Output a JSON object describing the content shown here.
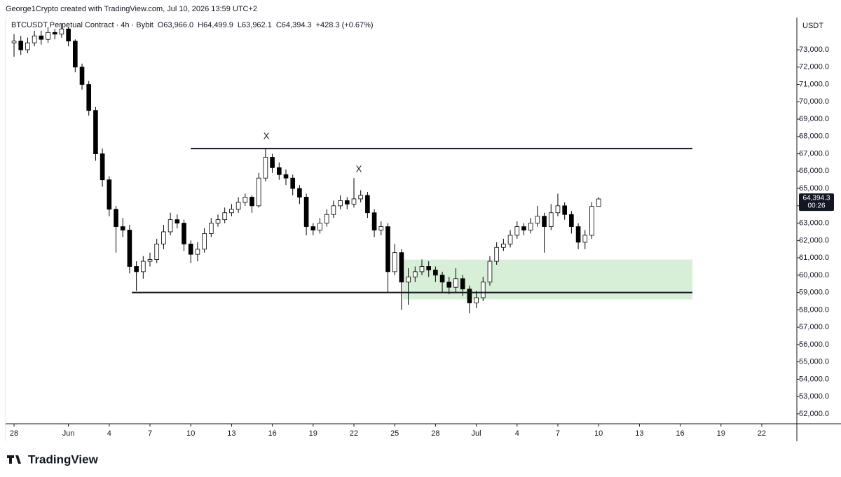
{
  "header": {
    "credit": "George1Crypto created with TradingView.com, Jul 10, 2026 13:59 UTC+2",
    "symbol": "BTCUSDT Perpetual Contract · 4h · Bybit",
    "open": "O63,966.0",
    "high": "H64,499.9",
    "low": "L63,962.1",
    "close": "C64,394.3",
    "change": "+428.3 (+0.67%)"
  },
  "footer": {
    "logo": "TradingView"
  },
  "chart_data": {
    "type": "candlestick",
    "currency": "USDT",
    "up_color": "#ffffff",
    "down_color": "#000000",
    "wick_color": "#000000",
    "x": [
      0,
      0.5,
      1,
      1.5,
      2,
      2.5,
      3,
      3.5,
      4,
      4.5,
      5,
      5.5,
      6,
      6.5,
      7,
      7.5,
      8,
      8.5,
      9,
      9.5,
      10,
      10.5,
      11,
      11.5,
      12,
      12.5,
      13,
      13.5,
      14,
      14.5,
      15,
      15.5,
      16,
      16.5,
      17,
      17.5,
      18,
      18.5,
      19,
      19.5,
      20,
      20.5,
      21,
      21.5,
      22,
      22.5,
      23,
      23.5,
      24,
      24.5,
      25,
      25.5,
      26,
      26.5,
      27,
      27.5,
      28,
      28.5,
      29,
      29.5,
      30,
      30.5,
      31,
      31.5,
      32,
      32.5,
      33,
      33.5,
      34,
      34.5,
      35,
      35.5,
      36,
      36.5,
      37,
      37.5,
      38,
      38.5,
      39,
      39.5,
      40,
      40.5,
      41,
      41.5,
      42,
      42.5,
      43
    ],
    "open": [
      73400,
      73500,
      73000,
      73400,
      73800,
      73600,
      74000,
      73900,
      74200,
      73500,
      72000,
      71000,
      69500,
      67000,
      65500,
      63800,
      62800,
      62600,
      60500,
      60200,
      60800,
      60900,
      61800,
      62500,
      63200,
      63000,
      61800,
      61200,
      61500,
      62400,
      63000,
      63200,
      63600,
      63800,
      64200,
      64500,
      64000,
      65600,
      66800,
      66200,
      65800,
      65600,
      65000,
      64500,
      62800,
      62600,
      63000,
      63500,
      64000,
      64300,
      64100,
      64400,
      64600,
      63600,
      62600,
      62800,
      60200,
      61300,
      59600,
      59900,
      60200,
      60500,
      60300,
      60000,
      59600,
      59300,
      59800,
      59200,
      58400,
      58700,
      59600,
      60800,
      61600,
      61800,
      62300,
      62800,
      62600,
      63000,
      63400,
      62800,
      63600,
      64000,
      63500,
      62800,
      61900,
      62300,
      63966
    ],
    "high": [
      73900,
      73800,
      73700,
      74100,
      74100,
      74300,
      74200,
      74500,
      74300,
      73600,
      72200,
      71200,
      69700,
      67300,
      65700,
      64000,
      63300,
      62900,
      60800,
      61100,
      61300,
      62100,
      62900,
      63600,
      63500,
      63200,
      62000,
      61900,
      62700,
      63300,
      63500,
      63900,
      64100,
      64500,
      64700,
      64600,
      65900,
      67300,
      67000,
      66500,
      66100,
      65800,
      65200,
      64700,
      63000,
      63300,
      63800,
      64300,
      64600,
      64500,
      65600,
      64900,
      64800,
      63800,
      63100,
      63000,
      61800,
      61500,
      60400,
      60500,
      60900,
      60800,
      60500,
      60200,
      59900,
      60400,
      60000,
      59400,
      59100,
      59900,
      61100,
      61900,
      62100,
      62600,
      63100,
      63000,
      63300,
      64000,
      63600,
      64100,
      64700,
      64200,
      63700,
      63000,
      62600,
      64200,
      64499.9
    ],
    "low": [
      72600,
      72700,
      72800,
      73200,
      73300,
      73400,
      73600,
      73700,
      73200,
      71700,
      70700,
      69200,
      66600,
      65100,
      63400,
      61300,
      62200,
      60100,
      59100,
      59800,
      60500,
      60700,
      61500,
      62300,
      62700,
      61400,
      60700,
      60800,
      61300,
      62200,
      62800,
      63000,
      63400,
      63600,
      64000,
      63600,
      63900,
      65400,
      65900,
      65500,
      65200,
      64600,
      64100,
      62300,
      62300,
      62400,
      62800,
      63300,
      63800,
      63800,
      63900,
      64200,
      63300,
      62200,
      62300,
      59000,
      60000,
      58000,
      58300,
      59600,
      60000,
      59900,
      59600,
      59000,
      58900,
      59000,
      58800,
      57800,
      58100,
      58500,
      59400,
      60600,
      61400,
      61600,
      62100,
      62300,
      62400,
      62800,
      61300,
      62600,
      63400,
      63200,
      62400,
      61500,
      61500,
      62100,
      63962.1
    ],
    "close": [
      73500,
      73000,
      73400,
      73800,
      73600,
      74000,
      73900,
      74200,
      73500,
      72000,
      71000,
      69500,
      67000,
      65500,
      63800,
      62800,
      62600,
      60500,
      60200,
      60800,
      60900,
      61800,
      62500,
      63200,
      63000,
      61800,
      61200,
      61500,
      62400,
      63000,
      63200,
      63600,
      63800,
      64200,
      64500,
      64000,
      65600,
      66800,
      66200,
      65800,
      65600,
      65000,
      64500,
      62800,
      62600,
      63000,
      63500,
      64000,
      64300,
      64100,
      64400,
      64600,
      63600,
      62600,
      62800,
      60200,
      61300,
      59600,
      59900,
      60200,
      60500,
      60300,
      60000,
      59600,
      59300,
      59800,
      59200,
      58400,
      58700,
      59600,
      60800,
      61600,
      61800,
      62300,
      62800,
      62600,
      63000,
      63400,
      62800,
      63600,
      64000,
      63500,
      62800,
      61900,
      62300,
      63966,
      64394.3
    ],
    "xlim": [
      -0.62,
      57.58
    ],
    "ylim": [
      51430,
      74860
    ],
    "xticks": [
      {
        "value": 0,
        "label": "28"
      },
      {
        "value": 4,
        "label": "Jun"
      },
      {
        "value": 7,
        "label": "4"
      },
      {
        "value": 10,
        "label": "7"
      },
      {
        "value": 13,
        "label": "10"
      },
      {
        "value": 16,
        "label": "13"
      },
      {
        "value": 19,
        "label": "16"
      },
      {
        "value": 22,
        "label": "19"
      },
      {
        "value": 25,
        "label": "22"
      },
      {
        "value": 28,
        "label": "25"
      },
      {
        "value": 31,
        "label": "28"
      },
      {
        "value": 34,
        "label": "Jul"
      },
      {
        "value": 37,
        "label": "4"
      },
      {
        "value": 40,
        "label": "7"
      },
      {
        "value": 43,
        "label": "10"
      },
      {
        "value": 46,
        "label": "13"
      },
      {
        "value": 49,
        "label": "16"
      },
      {
        "value": 52,
        "label": "19"
      },
      {
        "value": 55,
        "label": "22"
      }
    ],
    "yticks": [
      {
        "value": 52000,
        "label": "52,000.0"
      },
      {
        "value": 53000,
        "label": "53,000.0"
      },
      {
        "value": 54000,
        "label": "54,000.0"
      },
      {
        "value": 55000,
        "label": "55,000.0"
      },
      {
        "value": 56000,
        "label": "56,000.0"
      },
      {
        "value": 57000,
        "label": "57,000.0"
      },
      {
        "value": 58000,
        "label": "58,000.0"
      },
      {
        "value": 59000,
        "label": "59,000.0"
      },
      {
        "value": 60000,
        "label": "60,000.0"
      },
      {
        "value": 61000,
        "label": "61,000.0"
      },
      {
        "value": 62000,
        "label": "62,000.0"
      },
      {
        "value": 63000,
        "label": "63,000.0"
      },
      {
        "value": 64000,
        "label": "64,000.0"
      },
      {
        "value": 65000,
        "label": "65,000.0"
      },
      {
        "value": 66000,
        "label": "66,000.0"
      },
      {
        "value": 67000,
        "label": "67,000.0"
      },
      {
        "value": 68000,
        "label": "68,000.0"
      },
      {
        "value": 69000,
        "label": "69,000.0"
      },
      {
        "value": 70000,
        "label": "70,000.0"
      },
      {
        "value": 71000,
        "label": "71,000.0"
      },
      {
        "value": 72000,
        "label": "72,000.0"
      },
      {
        "value": 73000,
        "label": "73,000.0"
      }
    ],
    "price_tag": {
      "value": 64394.3,
      "label": "64,394.3",
      "countdown": "00:26"
    },
    "levels": [
      {
        "y": 67300,
        "x": [
          13,
          49.9
        ]
      },
      {
        "y": 59000,
        "x": [
          8.66,
          49.9
        ]
      }
    ],
    "zones": [
      {
        "y": [
          58600,
          60900
        ],
        "x": [
          28.6,
          49.9
        ],
        "color": "#d6efd6"
      }
    ],
    "annotations": [
      {
        "text": "X",
        "x": 18.56,
        "y": 68000
      },
      {
        "text": "X",
        "x": 25.36,
        "y": 66100
      }
    ]
  }
}
